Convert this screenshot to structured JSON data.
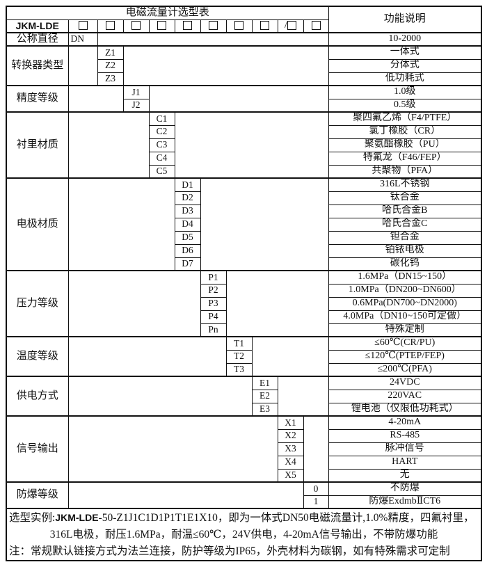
{
  "colors": {
    "background": "#ffffff",
    "line": "#111111",
    "text": "#111111"
  },
  "header": {
    "title": "电磁流量计选型表",
    "function_label": "功能说明"
  },
  "model": {
    "label": "JKM-LDE",
    "checkboxes": [
      {
        "prefix": ""
      },
      {
        "prefix": ""
      },
      {
        "prefix": ""
      },
      {
        "prefix": ""
      },
      {
        "prefix": ""
      },
      {
        "prefix": ""
      },
      {
        "prefix": ""
      },
      {
        "prefix": ""
      },
      {
        "prefix": "/"
      },
      {
        "prefix": ""
      }
    ]
  },
  "groups": [
    {
      "category": "公称直径",
      "rows": [
        {
          "code": "DN",
          "desc": "10-2000"
        }
      ]
    },
    {
      "category": "转换器类型",
      "rows": [
        {
          "code": "Z1",
          "desc": "一体式"
        },
        {
          "code": "Z2",
          "desc": "分体式"
        },
        {
          "code": "Z3",
          "desc": "低功耗式"
        }
      ]
    },
    {
      "category": "精度等级",
      "rows": [
        {
          "code": "J1",
          "desc": "1.0级"
        },
        {
          "code": "J2",
          "desc": "0.5级"
        }
      ]
    },
    {
      "category": "衬里材质",
      "rows": [
        {
          "code": "C1",
          "desc": "聚四氟乙烯（F4/PTFE）"
        },
        {
          "code": "C2",
          "desc": "氯丁橡胶（CR）"
        },
        {
          "code": "C3",
          "desc": "聚氨酯橡胶（PU）"
        },
        {
          "code": "C4",
          "desc": "特氟龙（F46/FEP）"
        },
        {
          "code": "C5",
          "desc": "共聚物（PFA）"
        }
      ]
    },
    {
      "category": "电极材质",
      "rows": [
        {
          "code": "D1",
          "desc": "316L不锈钢"
        },
        {
          "code": "D2",
          "desc": "钛合金"
        },
        {
          "code": "D3",
          "desc": "哈氏合金B"
        },
        {
          "code": "D4",
          "desc": "哈氏合金C"
        },
        {
          "code": "D5",
          "desc": "钽合金"
        },
        {
          "code": "D6",
          "desc": "铂铱电极"
        },
        {
          "code": "D7",
          "desc": "碳化钨"
        }
      ]
    },
    {
      "category": "压力等级",
      "rows": [
        {
          "code": "P1",
          "desc": "1.6MPa（DN15~150）"
        },
        {
          "code": "P2",
          "desc": "1.0MPa（DN200~DN600）"
        },
        {
          "code": "P3",
          "desc": "0.6MPa(DN700~DN2000)"
        },
        {
          "code": "P4",
          "desc": "4.0MPa（DN10~150可定做）"
        },
        {
          "code": "Pn",
          "desc": "特殊定制"
        }
      ]
    },
    {
      "category": "温度等级",
      "rows": [
        {
          "code": "T1",
          "desc": "≤60℃(CR/PU)"
        },
        {
          "code": "T2",
          "desc": "≤120℃(PTEP/FEP)"
        },
        {
          "code": "T3",
          "desc": "≤200℃(PFA)"
        }
      ]
    },
    {
      "category": "供电方式",
      "rows": [
        {
          "code": "E1",
          "desc": "24VDC"
        },
        {
          "code": "E2",
          "desc": "220VAC"
        },
        {
          "code": "E3",
          "desc": "锂电池（仅限低功耗式）"
        }
      ]
    },
    {
      "category": "信号输出",
      "rows": [
        {
          "code": "X1",
          "desc": "4-20mA"
        },
        {
          "code": "X2",
          "desc": "RS-485"
        },
        {
          "code": "X3",
          "desc": "脉冲信号"
        },
        {
          "code": "X4",
          "desc": "HART"
        },
        {
          "code": "X5",
          "desc": "无"
        }
      ]
    },
    {
      "category": "防爆等级",
      "rows": [
        {
          "code": "0",
          "desc": "不防爆"
        },
        {
          "code": "1",
          "desc": "防爆ExdmbⅡCT6"
        }
      ]
    }
  ],
  "notes": {
    "example_prefix": "选型实例:",
    "example_model": "JKM-LDE",
    "example_rest": "-50-Z1J1C1D1P1T1E1X10，即为一体式DN50电磁流量计,1.0%精度，四氟衬里，",
    "example_line2": "316L电极，耐压1.6MPa，耐温≤60℃，24V供电，4-20mA信号输出，不带防爆功能",
    "note_line": "注：常规默认链接方式为法兰连接，防护等级为IP65，外壳材料为碳钢，如有特殊需求可定制"
  }
}
